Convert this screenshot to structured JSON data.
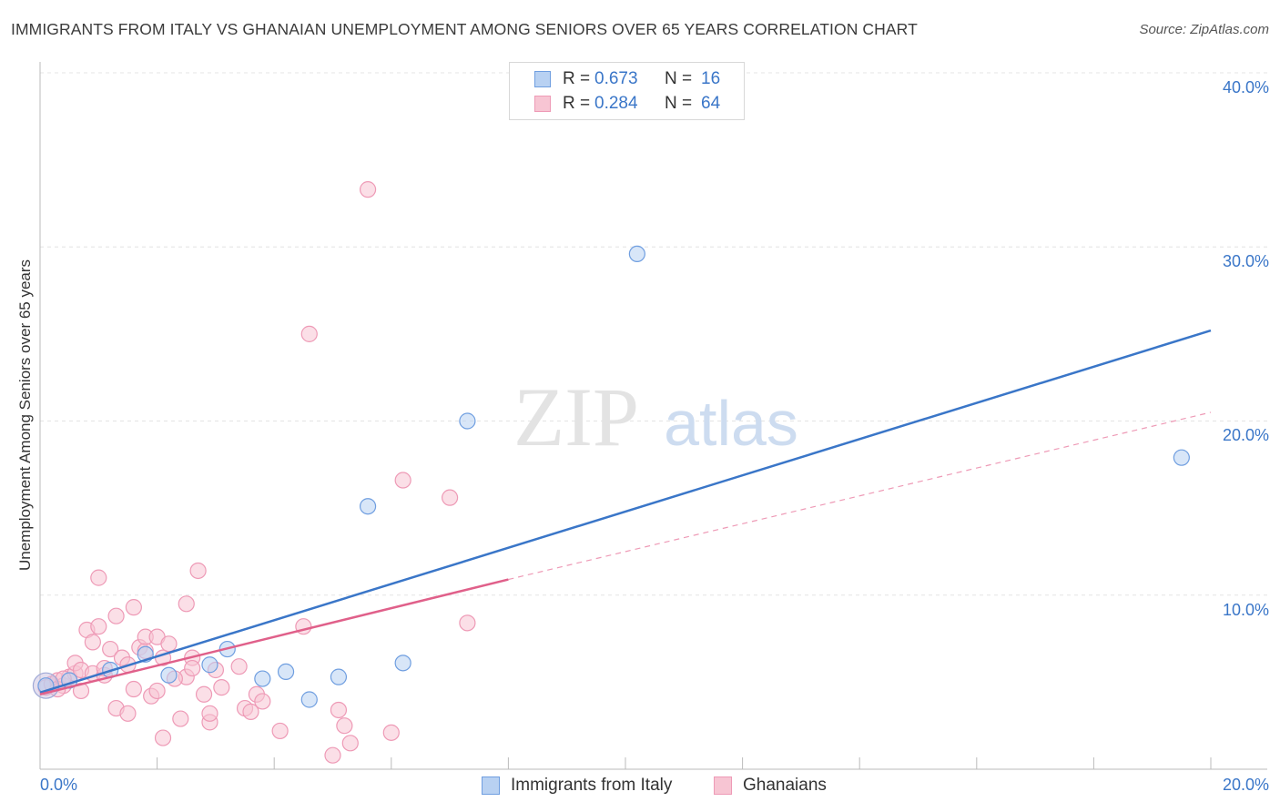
{
  "chart_data": {
    "type": "scatter",
    "title": "IMMIGRANTS FROM ITALY VS GHANAIAN UNEMPLOYMENT AMONG SENIORS OVER 65 YEARS CORRELATION CHART",
    "source": "Source: ZipAtlas.com",
    "ylabel": "Unemployment Among Seniors over 65 years",
    "xlim": [
      0,
      20
    ],
    "ylim": [
      0,
      40
    ],
    "x_tick_labels": [
      "0.0%",
      "20.0%"
    ],
    "y_ticks": [
      10,
      20,
      30,
      40
    ],
    "y_tick_labels": [
      "10.0%",
      "20.0%",
      "30.0%",
      "40.0%"
    ],
    "grid": true,
    "watermark": "ZIPatlas",
    "legend": {
      "rows": [
        {
          "r_label": "R =",
          "r_value": "0.673",
          "n_label": "N =",
          "n_value": "16"
        },
        {
          "r_label": "R =",
          "r_value": "0.284",
          "n_label": "N =",
          "n_value": "64"
        }
      ]
    },
    "series": [
      {
        "name": "Immigrants from Italy",
        "color": "#3a76c8",
        "fill": "#b8d1f2",
        "points": [
          [
            0.1,
            4.8
          ],
          [
            0.5,
            5.1
          ],
          [
            1.2,
            5.7
          ],
          [
            1.8,
            6.6
          ],
          [
            2.2,
            5.4
          ],
          [
            2.9,
            6.0
          ],
          [
            3.2,
            6.9
          ],
          [
            3.8,
            5.2
          ],
          [
            4.2,
            5.6
          ],
          [
            4.6,
            4.0
          ],
          [
            5.1,
            5.3
          ],
          [
            5.6,
            15.1
          ],
          [
            6.2,
            6.1
          ],
          [
            7.3,
            20.0
          ],
          [
            10.2,
            29.6
          ],
          [
            19.5,
            17.9
          ]
        ],
        "trend": {
          "x": [
            0,
            20
          ],
          "y": [
            4.4,
            25.2
          ],
          "style": "solid"
        }
      },
      {
        "name": "Ghanaians",
        "color": "#e0608a",
        "fill": "#f7c5d3",
        "points": [
          [
            0.1,
            4.7
          ],
          [
            0.2,
            4.9
          ],
          [
            0.3,
            5.1
          ],
          [
            0.4,
            4.8
          ],
          [
            0.5,
            5.3
          ],
          [
            0.6,
            5.5
          ],
          [
            0.6,
            6.1
          ],
          [
            0.7,
            4.5
          ],
          [
            0.7,
            5.7
          ],
          [
            0.8,
            8.0
          ],
          [
            0.9,
            5.5
          ],
          [
            0.9,
            7.3
          ],
          [
            1.0,
            8.2
          ],
          [
            1.0,
            11.0
          ],
          [
            1.1,
            5.4
          ],
          [
            1.2,
            6.9
          ],
          [
            1.3,
            8.8
          ],
          [
            1.3,
            3.5
          ],
          [
            1.4,
            6.4
          ],
          [
            1.5,
            6.0
          ],
          [
            1.5,
            3.2
          ],
          [
            1.6,
            9.3
          ],
          [
            1.6,
            4.6
          ],
          [
            1.7,
            7.0
          ],
          [
            1.8,
            6.8
          ],
          [
            1.8,
            7.6
          ],
          [
            1.9,
            4.2
          ],
          [
            2.0,
            4.5
          ],
          [
            2.0,
            7.6
          ],
          [
            2.1,
            6.4
          ],
          [
            2.1,
            1.8
          ],
          [
            2.2,
            7.2
          ],
          [
            2.4,
            2.9
          ],
          [
            2.5,
            5.3
          ],
          [
            2.5,
            9.5
          ],
          [
            2.6,
            6.4
          ],
          [
            2.7,
            11.4
          ],
          [
            2.8,
            4.3
          ],
          [
            2.9,
            2.7
          ],
          [
            2.9,
            3.2
          ],
          [
            3.0,
            5.7
          ],
          [
            3.1,
            4.7
          ],
          [
            3.4,
            5.9
          ],
          [
            3.5,
            3.5
          ],
          [
            3.6,
            3.3
          ],
          [
            3.7,
            4.3
          ],
          [
            3.8,
            3.9
          ],
          [
            4.1,
            2.2
          ],
          [
            4.5,
            8.2
          ],
          [
            4.6,
            25.0
          ],
          [
            5.0,
            0.8
          ],
          [
            5.1,
            3.4
          ],
          [
            5.2,
            2.5
          ],
          [
            5.3,
            1.5
          ],
          [
            5.6,
            33.3
          ],
          [
            6.0,
            2.1
          ],
          [
            6.2,
            16.6
          ],
          [
            7.0,
            15.6
          ],
          [
            7.3,
            8.4
          ],
          [
            0.3,
            4.6
          ],
          [
            0.4,
            5.2
          ],
          [
            1.1,
            5.8
          ],
          [
            2.3,
            5.2
          ],
          [
            2.6,
            5.8
          ]
        ],
        "trend": {
          "x": [
            0,
            8
          ],
          "y": [
            4.3,
            10.9
          ],
          "style": "solid",
          "extension": {
            "x": [
              8,
              20
            ],
            "y": [
              10.9,
              20.5
            ],
            "style": "dashed"
          }
        }
      }
    ]
  }
}
